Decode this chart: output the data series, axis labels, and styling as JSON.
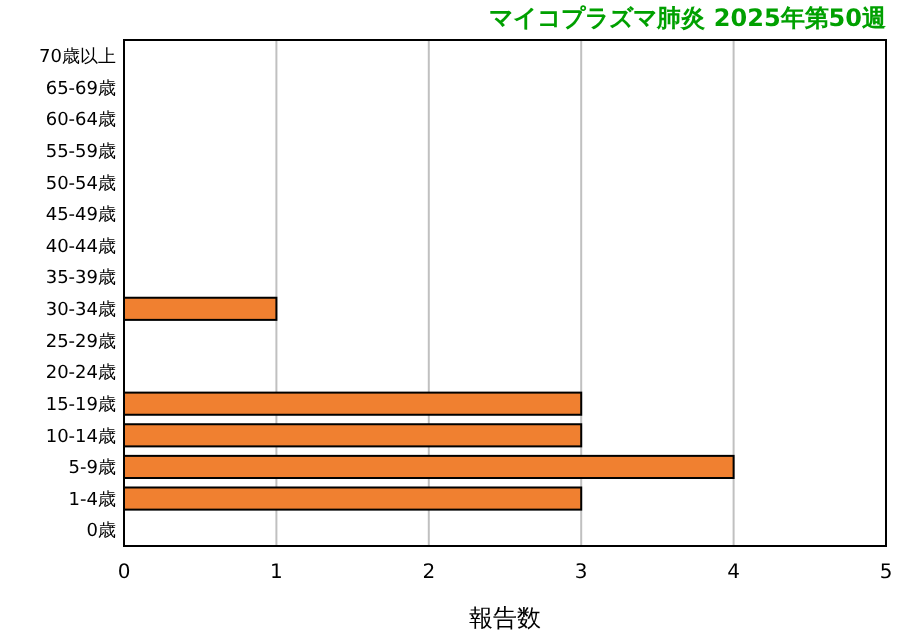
{
  "chart_data": {
    "type": "bar",
    "orientation": "horizontal",
    "title": "マイコプラズマ肺炎 2025年第50週",
    "xlabel": "報告数",
    "categories": [
      "70歳以上",
      "65-69歳",
      "60-64歳",
      "55-59歳",
      "50-54歳",
      "45-49歳",
      "40-44歳",
      "35-39歳",
      "30-34歳",
      "25-29歳",
      "20-24歳",
      "15-19歳",
      "10-14歳",
      "5-9歳",
      "1-4歳",
      "0歳"
    ],
    "values": [
      0,
      0,
      0,
      0,
      0,
      0,
      0,
      0,
      1,
      0,
      0,
      3,
      3,
      4,
      3,
      0
    ],
    "color": "#f08030",
    "xlim": [
      0,
      5
    ],
    "xticks": [
      0,
      1,
      2,
      3,
      4,
      5
    ],
    "grid": "x"
  }
}
